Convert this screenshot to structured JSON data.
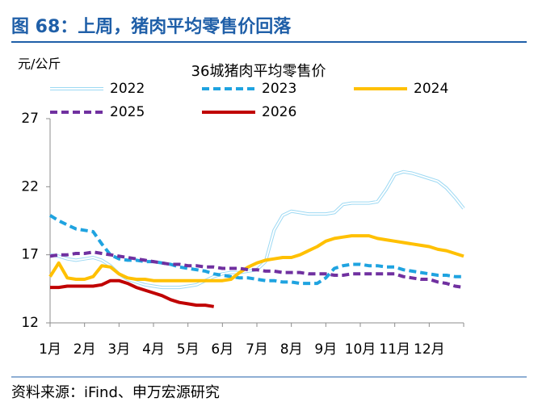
{
  "header": "图 68：上周，猪肉平均零售价回落",
  "source": "资料来源：iFind、申万宏源研究",
  "chart_data": {
    "type": "line",
    "title": "36城猪肉平均零售价",
    "y_label": "元/公斤",
    "x": [
      0,
      0.25,
      0.5,
      0.75,
      1,
      1.25,
      1.5,
      1.75,
      2,
      2.25,
      2.5,
      2.75,
      3,
      3.25,
      3.5,
      3.75,
      4,
      4.25,
      4.5,
      4.75,
      5,
      5.25,
      5.5,
      5.75,
      6,
      6.25,
      6.5,
      6.75,
      7,
      7.25,
      7.5,
      7.75,
      8,
      8.25,
      8.5,
      8.75,
      9,
      9.25,
      9.5,
      9.75,
      10,
      10.25,
      10.5,
      10.75,
      11,
      11.25,
      11.5,
      11.75,
      12
    ],
    "xlim": [
      0,
      12
    ],
    "xticks": [
      {
        "value": 0,
        "label": "1月"
      },
      {
        "value": 1,
        "label": "2月"
      },
      {
        "value": 2,
        "label": "3月"
      },
      {
        "value": 3,
        "label": "4月"
      },
      {
        "value": 4,
        "label": "5月"
      },
      {
        "value": 5,
        "label": "6月"
      },
      {
        "value": 6,
        "label": "7月"
      },
      {
        "value": 7,
        "label": "8月"
      },
      {
        "value": 8,
        "label": "9月"
      },
      {
        "value": 9,
        "label": "10月"
      },
      {
        "value": 10,
        "label": "11月"
      },
      {
        "value": 11,
        "label": "12月"
      }
    ],
    "ylim": [
      12,
      27
    ],
    "yticks": [
      12,
      17,
      22,
      27
    ],
    "grid": false,
    "series": [
      {
        "name": "2022",
        "color": "#9dd9f3",
        "outline": true,
        "dashed": false,
        "values": [
          17.0,
          16.9,
          16.7,
          16.6,
          16.7,
          16.8,
          16.6,
          16.2,
          15.6,
          15.2,
          15.0,
          14.8,
          14.7,
          14.6,
          14.6,
          14.6,
          14.7,
          14.8,
          15.1,
          15.4,
          15.6,
          15.7,
          15.7,
          15.8,
          15.9,
          16.5,
          18.8,
          19.9,
          20.2,
          20.1,
          20.0,
          20.0,
          20.0,
          20.1,
          20.7,
          20.8,
          20.8,
          20.8,
          20.9,
          21.8,
          22.9,
          23.1,
          23.0,
          22.8,
          22.6,
          22.4,
          21.9,
          21.2,
          20.4
        ]
      },
      {
        "name": "2023",
        "color": "#1fa3e0",
        "outline": false,
        "dashed": true,
        "values": [
          19.9,
          19.5,
          19.2,
          18.9,
          18.8,
          18.7,
          17.8,
          17.0,
          16.7,
          16.6,
          16.6,
          16.5,
          16.5,
          16.4,
          16.3,
          16.1,
          16.0,
          15.9,
          15.8,
          15.6,
          15.5,
          15.4,
          15.3,
          15.3,
          15.2,
          15.1,
          15.1,
          15.0,
          15.0,
          14.9,
          14.9,
          14.9,
          15.3,
          16.0,
          16.2,
          16.3,
          16.3,
          16.2,
          16.2,
          16.1,
          16.1,
          15.9,
          15.8,
          15.7,
          15.6,
          15.5,
          15.5,
          15.4,
          15.4
        ]
      },
      {
        "name": "2024",
        "color": "#ffc000",
        "outline": false,
        "dashed": false,
        "values": [
          15.4,
          16.4,
          15.3,
          15.2,
          15.2,
          15.4,
          16.2,
          16.1,
          15.6,
          15.3,
          15.2,
          15.2,
          15.1,
          15.1,
          15.1,
          15.1,
          15.1,
          15.1,
          15.1,
          15.1,
          15.1,
          15.2,
          15.7,
          16.1,
          16.4,
          16.6,
          16.7,
          16.8,
          16.8,
          17.0,
          17.3,
          17.6,
          18.0,
          18.2,
          18.3,
          18.4,
          18.4,
          18.4,
          18.2,
          18.1,
          18.0,
          17.9,
          17.8,
          17.7,
          17.6,
          17.4,
          17.3,
          17.1,
          16.9
        ]
      },
      {
        "name": "2025",
        "color": "#7030a0",
        "outline": false,
        "dashed": true,
        "values": [
          16.9,
          17.0,
          17.0,
          17.1,
          17.1,
          17.2,
          17.1,
          17.0,
          16.9,
          16.8,
          16.7,
          16.6,
          16.5,
          16.4,
          16.3,
          16.3,
          16.2,
          16.2,
          16.1,
          16.1,
          16.0,
          16.0,
          16.0,
          15.9,
          15.9,
          15.8,
          15.8,
          15.7,
          15.7,
          15.7,
          15.6,
          15.6,
          15.6,
          15.5,
          15.5,
          15.6,
          15.6,
          15.6,
          15.6,
          15.6,
          15.6,
          15.4,
          15.3,
          15.2,
          15.2,
          15.0,
          14.9,
          14.7,
          14.6
        ]
      },
      {
        "name": "2026",
        "color": "#c00000",
        "outline": false,
        "dashed": false,
        "values": [
          14.6,
          14.6,
          14.7,
          14.7,
          14.7,
          14.7,
          14.8,
          15.1,
          15.1,
          14.9,
          14.6,
          14.4,
          14.2,
          14.0,
          13.7,
          13.5,
          13.4,
          13.3,
          13.3,
          13.2,
          null,
          null,
          null,
          null,
          null,
          null,
          null,
          null,
          null,
          null,
          null,
          null,
          null,
          null,
          null,
          null,
          null,
          null,
          null,
          null,
          null,
          null,
          null,
          null,
          null,
          null,
          null,
          null,
          null
        ]
      }
    ]
  }
}
